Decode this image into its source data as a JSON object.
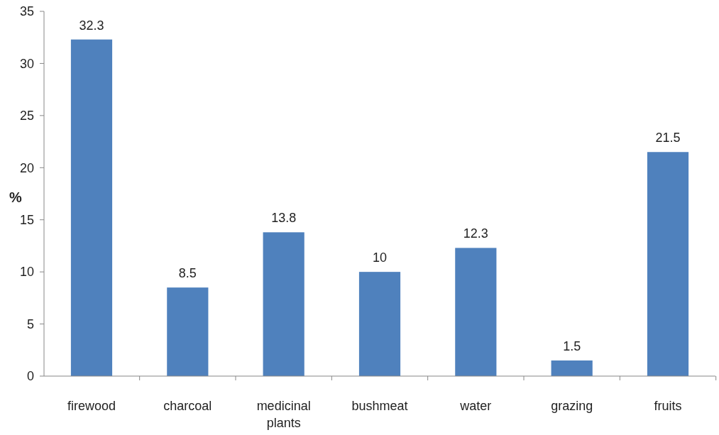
{
  "chart_data": {
    "type": "bar",
    "ylabel": "%",
    "categories": [
      "firewood",
      "charcoal",
      "medicinal plants",
      "bushmeat",
      "water",
      "grazing",
      "fruits"
    ],
    "values": [
      32.3,
      8.5,
      13.8,
      10,
      12.3,
      1.5,
      21.5
    ],
    "color": "#4f81bd",
    "ylim": [
      0,
      35
    ],
    "yticks": [
      0,
      5,
      10,
      15,
      20,
      25,
      30,
      35
    ],
    "data_labels": true
  }
}
